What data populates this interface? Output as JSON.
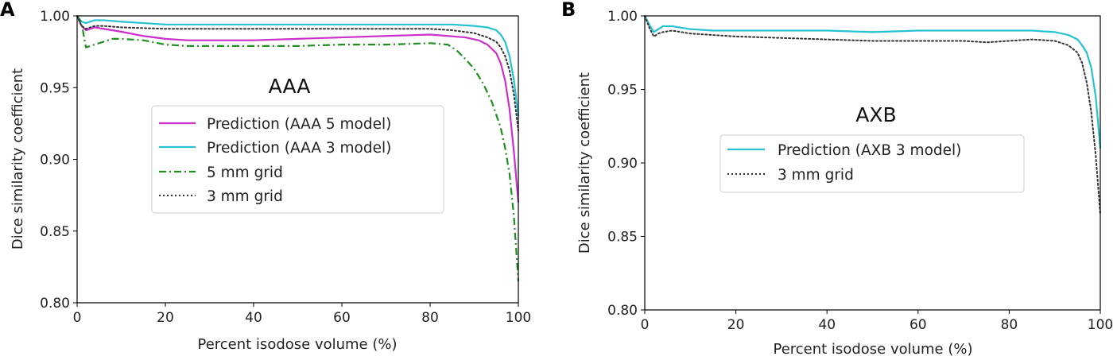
{
  "figure": {
    "description_letters": [
      "A",
      "B"
    ]
  },
  "colors": {
    "magenta": "#cc2fcc",
    "cyan": "#26c2d2",
    "green": "#1f8f1f",
    "black": "#333333"
  },
  "chart_data": [
    {
      "panel": "A",
      "type": "line",
      "title": "AAA",
      "xlabel": "Percent isodose volume (%)",
      "ylabel": "Dice similarity coefficient",
      "xlim": [
        0,
        100
      ],
      "ylim": [
        0.8,
        1.0
      ],
      "xticks": [
        0,
        20,
        40,
        60,
        80,
        100
      ],
      "xtick_labels": [
        "0",
        "20",
        "40",
        "60",
        "80",
        "100"
      ],
      "yticks": [
        0.8,
        0.85,
        0.9,
        0.95,
        1.0
      ],
      "ytick_labels": [
        "0.80",
        "0.85",
        "0.90",
        "0.95",
        "1.00"
      ],
      "grid": false,
      "legend_position": "center",
      "series": [
        {
          "name": "Prediction (AAA 5 model)",
          "color": "magenta",
          "style": "solid",
          "x": [
            0,
            1,
            2,
            4,
            6,
            10,
            15,
            20,
            25,
            30,
            40,
            50,
            60,
            70,
            80,
            84,
            88,
            91,
            93,
            95,
            96,
            97,
            98,
            99,
            100
          ],
          "y": [
            1.0,
            0.993,
            0.99,
            0.992,
            0.991,
            0.989,
            0.986,
            0.984,
            0.983,
            0.983,
            0.983,
            0.984,
            0.985,
            0.986,
            0.987,
            0.986,
            0.985,
            0.983,
            0.98,
            0.974,
            0.967,
            0.955,
            0.935,
            0.905,
            0.87
          ]
        },
        {
          "name": "Prediction (AAA 3 model)",
          "color": "cyan",
          "style": "solid",
          "x": [
            0,
            1,
            2,
            3,
            4,
            6,
            10,
            20,
            30,
            40,
            50,
            60,
            70,
            80,
            85,
            90,
            93,
            95,
            96,
            97,
            98,
            99,
            100
          ],
          "y": [
            1.0,
            0.996,
            0.995,
            0.996,
            0.997,
            0.997,
            0.996,
            0.994,
            0.994,
            0.994,
            0.994,
            0.994,
            0.994,
            0.994,
            0.994,
            0.993,
            0.992,
            0.99,
            0.987,
            0.982,
            0.972,
            0.955,
            0.93
          ]
        },
        {
          "name": "5 mm grid",
          "color": "green",
          "style": "dashdot",
          "x": [
            0,
            1,
            2,
            4,
            6,
            8,
            10,
            15,
            20,
            25,
            30,
            40,
            50,
            60,
            70,
            80,
            84,
            86,
            88,
            90,
            92,
            94,
            96,
            97,
            98,
            99,
            100
          ],
          "y": [
            1.0,
            0.995,
            0.978,
            0.98,
            0.982,
            0.984,
            0.984,
            0.983,
            0.98,
            0.979,
            0.979,
            0.979,
            0.979,
            0.98,
            0.98,
            0.981,
            0.98,
            0.976,
            0.97,
            0.963,
            0.953,
            0.94,
            0.922,
            0.908,
            0.89,
            0.86,
            0.815
          ]
        },
        {
          "name": "3 mm grid",
          "color": "black",
          "style": "dotted",
          "x": [
            0,
            1,
            2,
            4,
            6,
            10,
            20,
            30,
            40,
            50,
            60,
            70,
            80,
            85,
            90,
            93,
            95,
            96,
            97,
            98,
            99,
            100
          ],
          "y": [
            1.0,
            0.993,
            0.991,
            0.993,
            0.993,
            0.992,
            0.991,
            0.991,
            0.991,
            0.991,
            0.991,
            0.991,
            0.991,
            0.99,
            0.988,
            0.985,
            0.982,
            0.978,
            0.972,
            0.962,
            0.945,
            0.92
          ]
        }
      ]
    },
    {
      "panel": "B",
      "type": "line",
      "title": "AXB",
      "xlabel": "Percent isodose volume (%)",
      "ylabel": "Dice similarity coefficient",
      "xlim": [
        0,
        100
      ],
      "ylim": [
        0.8,
        1.0
      ],
      "xticks": [
        0,
        20,
        40,
        60,
        80,
        100
      ],
      "xtick_labels": [
        "0",
        "20",
        "40",
        "60",
        "80",
        "100"
      ],
      "yticks": [
        0.8,
        0.85,
        0.9,
        0.95,
        1.0
      ],
      "ytick_labels": [
        "0.80",
        "0.85",
        "0.90",
        "0.95",
        "1.00"
      ],
      "grid": false,
      "legend_position": "center-right",
      "series": [
        {
          "name": "Prediction (AXB 3 model)",
          "color": "cyan",
          "style": "solid",
          "x": [
            0,
            1,
            2,
            3,
            4,
            6,
            8,
            10,
            15,
            20,
            30,
            40,
            50,
            60,
            70,
            80,
            85,
            90,
            93,
            95,
            96,
            97,
            98,
            99,
            100
          ],
          "y": [
            1.0,
            0.994,
            0.989,
            0.991,
            0.993,
            0.993,
            0.992,
            0.991,
            0.99,
            0.99,
            0.99,
            0.99,
            0.989,
            0.99,
            0.99,
            0.99,
            0.99,
            0.989,
            0.987,
            0.984,
            0.98,
            0.975,
            0.965,
            0.945,
            0.91
          ]
        },
        {
          "name": "3 mm grid",
          "color": "black",
          "style": "dotted",
          "x": [
            0,
            1,
            2,
            3,
            4,
            6,
            8,
            10,
            20,
            30,
            40,
            50,
            60,
            70,
            75,
            80,
            85,
            90,
            93,
            95,
            96,
            97,
            98,
            99,
            100
          ],
          "y": [
            1.0,
            0.992,
            0.986,
            0.988,
            0.989,
            0.99,
            0.989,
            0.988,
            0.986,
            0.985,
            0.984,
            0.983,
            0.983,
            0.983,
            0.982,
            0.983,
            0.984,
            0.983,
            0.98,
            0.975,
            0.968,
            0.955,
            0.935,
            0.905,
            0.865
          ]
        }
      ]
    }
  ]
}
